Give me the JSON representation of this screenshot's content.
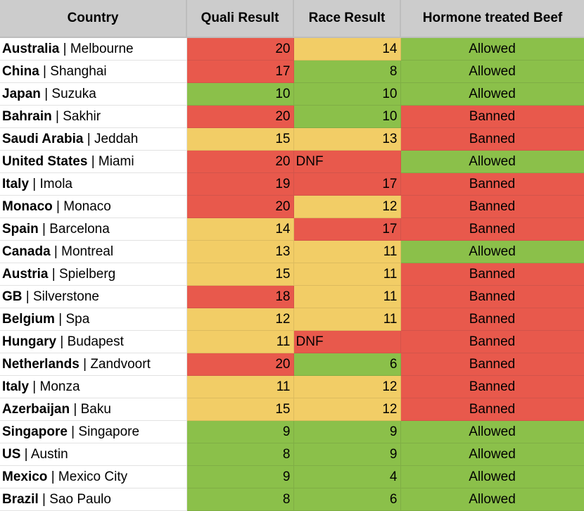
{
  "colors": {
    "red": "#e8594c",
    "yellow": "#f2cd66",
    "green": "#8bc04a",
    "header": "#cccccc"
  },
  "headers": [
    "Country",
    "Quali Result",
    "Race Result",
    "Hormone treated Beef"
  ],
  "separator": " | ",
  "rows": [
    {
      "country": "Australia",
      "city": "Melbourne",
      "quali": "20",
      "quali_color": "red",
      "race": "14",
      "race_color": "yellow",
      "beef": "Allowed",
      "beef_color": "green"
    },
    {
      "country": "China",
      "city": "Shanghai",
      "quali": "17",
      "quali_color": "red",
      "race": "8",
      "race_color": "green",
      "beef": "Allowed",
      "beef_color": "green"
    },
    {
      "country": "Japan",
      "city": "Suzuka",
      "quali": "10",
      "quali_color": "green",
      "race": "10",
      "race_color": "green",
      "beef": "Allowed",
      "beef_color": "green"
    },
    {
      "country": "Bahrain",
      "city": "Sakhir",
      "quali": "20",
      "quali_color": "red",
      "race": "10",
      "race_color": "green",
      "beef": "Banned",
      "beef_color": "red"
    },
    {
      "country": "Saudi Arabia",
      "city": "Jeddah",
      "quali": "15",
      "quali_color": "yellow",
      "race": "13",
      "race_color": "yellow",
      "beef": "Banned",
      "beef_color": "red"
    },
    {
      "country": "United States",
      "city": "Miami",
      "quali": "20",
      "quali_color": "red",
      "race": "DNF",
      "race_color": "red",
      "beef": "Allowed",
      "beef_color": "green"
    },
    {
      "country": "Italy",
      "city": "Imola",
      "quali": "19",
      "quali_color": "red",
      "race": "17",
      "race_color": "red",
      "beef": "Banned",
      "beef_color": "red"
    },
    {
      "country": "Monaco",
      "city": "Monaco",
      "quali": "20",
      "quali_color": "red",
      "race": "12",
      "race_color": "yellow",
      "beef": "Banned",
      "beef_color": "red"
    },
    {
      "country": "Spain",
      "city": "Barcelona",
      "quali": "14",
      "quali_color": "yellow",
      "race": "17",
      "race_color": "red",
      "beef": "Banned",
      "beef_color": "red"
    },
    {
      "country": "Canada",
      "city": "Montreal",
      "quali": "13",
      "quali_color": "yellow",
      "race": "11",
      "race_color": "yellow",
      "beef": "Allowed",
      "beef_color": "green"
    },
    {
      "country": "Austria",
      "city": "Spielberg",
      "quali": "15",
      "quali_color": "yellow",
      "race": "11",
      "race_color": "yellow",
      "beef": "Banned",
      "beef_color": "red"
    },
    {
      "country": "GB",
      "city": "Silverstone",
      "quali": "18",
      "quali_color": "red",
      "race": "11",
      "race_color": "yellow",
      "beef": "Banned",
      "beef_color": "red"
    },
    {
      "country": "Belgium",
      "city": "Spa",
      "quali": "12",
      "quali_color": "yellow",
      "race": "11",
      "race_color": "yellow",
      "beef": "Banned",
      "beef_color": "red"
    },
    {
      "country": "Hungary",
      "city": "Budapest",
      "quali": "11",
      "quali_color": "yellow",
      "race": "DNF",
      "race_color": "red",
      "beef": "Banned",
      "beef_color": "red"
    },
    {
      "country": "Netherlands",
      "city": "Zandvoort",
      "quali": "20",
      "quali_color": "red",
      "race": "6",
      "race_color": "green",
      "beef": "Banned",
      "beef_color": "red"
    },
    {
      "country": "Italy",
      "city": "Monza",
      "quali": "11",
      "quali_color": "yellow",
      "race": "12",
      "race_color": "yellow",
      "beef": "Banned",
      "beef_color": "red"
    },
    {
      "country": "Azerbaijan",
      "city": "Baku",
      "quali": "15",
      "quali_color": "yellow",
      "race": "12",
      "race_color": "yellow",
      "beef": "Banned",
      "beef_color": "red"
    },
    {
      "country": "Singapore",
      "city": "Singapore",
      "quali": "9",
      "quali_color": "green",
      "race": "9",
      "race_color": "green",
      "beef": "Allowed",
      "beef_color": "green"
    },
    {
      "country": "US",
      "city": "Austin",
      "quali": "8",
      "quali_color": "green",
      "race": "9",
      "race_color": "green",
      "beef": "Allowed",
      "beef_color": "green"
    },
    {
      "country": "Mexico",
      "city": "Mexico City",
      "quali": "9",
      "quali_color": "green",
      "race": "4",
      "race_color": "green",
      "beef": "Allowed",
      "beef_color": "green"
    },
    {
      "country": "Brazil",
      "city": "Sao Paulo",
      "quali": "8",
      "quali_color": "green",
      "race": "6",
      "race_color": "green",
      "beef": "Allowed",
      "beef_color": "green"
    }
  ]
}
